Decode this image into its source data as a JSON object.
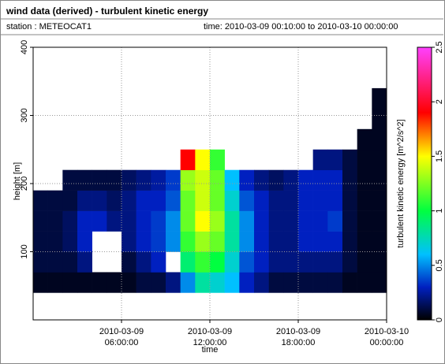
{
  "chart_data": {
    "type": "heatmap",
    "title": "wind data (derived) - turbulent kinetic energy",
    "station": "station : METEOCAT1",
    "time_range": "time: 2010-03-09 00:10:00 to 2010-03-10 00:00:00",
    "xlabel": "time",
    "ylabel": "height [m]",
    "colorbar_label": "turbulent kinetic energy [m^2/s^2]",
    "xlim": [
      0,
      24
    ],
    "xticks": [
      {
        "value": 6,
        "label": "2010-03-09 06:00:00"
      },
      {
        "value": 12,
        "label": "2010-03-09 12:00:00"
      },
      {
        "value": 18,
        "label": "2010-03-09 18:00:00"
      },
      {
        "value": 24,
        "label": "2010-03-10 00:00:00"
      }
    ],
    "ylim": [
      0,
      400
    ],
    "yticks": [
      100,
      200,
      300,
      400
    ],
    "zlim": [
      0,
      2.5
    ],
    "zticks": [
      0,
      0.5,
      1,
      1.5,
      2,
      2.5
    ],
    "colorscale": [
      [
        0,
        "#000000"
      ],
      [
        0.3,
        "#0020c0"
      ],
      [
        0.6,
        "#00c0ff"
      ],
      [
        1,
        "#00ff40"
      ],
      [
        1.5,
        "#ffff00"
      ],
      [
        1.9,
        "#ff0000"
      ],
      [
        2.5,
        "#ff40ff"
      ]
    ],
    "grid": true,
    "xbins": [
      0,
      1,
      2,
      3,
      4,
      5,
      6,
      7,
      8,
      9,
      10,
      11,
      12,
      13,
      14,
      15,
      16,
      17,
      18,
      19,
      20,
      21,
      22,
      23,
      24
    ],
    "ybins": [
      40,
      70,
      100,
      130,
      160,
      190,
      220,
      250,
      280,
      310,
      340
    ],
    "values": [
      [
        0.05,
        0.1,
        0.1,
        0.1,
        0.1,
        null,
        null,
        null,
        null,
        null
      ],
      [
        0.05,
        0.1,
        0.1,
        0.1,
        0.1,
        null,
        null,
        null,
        null,
        null
      ],
      [
        0.05,
        0.1,
        0.15,
        0.15,
        0.1,
        0.1,
        null,
        null,
        null,
        null
      ],
      [
        0.05,
        0.2,
        0.3,
        0.3,
        0.2,
        0.1,
        null,
        null,
        null,
        null
      ],
      [
        0.05,
        null,
        null,
        0.3,
        0.2,
        0.1,
        null,
        null,
        null,
        null
      ],
      [
        0.05,
        null,
        null,
        0.2,
        0.15,
        0.1,
        null,
        null,
        null,
        null
      ],
      [
        0.05,
        0.1,
        0.2,
        0.2,
        0.2,
        0.15,
        null,
        null,
        null,
        null
      ],
      [
        0.1,
        0.2,
        0.3,
        0.3,
        0.3,
        0.2,
        null,
        null,
        null,
        null
      ],
      [
        0.1,
        0.3,
        0.35,
        0.35,
        0.3,
        0.25,
        null,
        null,
        null,
        null
      ],
      [
        0.2,
        null,
        0.5,
        0.5,
        0.4,
        0.35,
        null,
        null,
        null,
        null
      ],
      [
        0.5,
        0.9,
        1.1,
        1.2,
        1.2,
        1.3,
        1.9,
        null,
        null,
        null
      ],
      [
        0.8,
        1.1,
        1.3,
        1.5,
        1.4,
        1.4,
        1.5,
        null,
        null,
        null
      ],
      [
        0.7,
        1.0,
        1.2,
        1.3,
        1.2,
        1.2,
        1.1,
        null,
        null,
        null
      ],
      [
        0.6,
        0.7,
        0.8,
        0.8,
        0.7,
        0.6,
        null,
        null,
        null,
        null
      ],
      [
        0.3,
        0.4,
        0.5,
        0.5,
        0.4,
        0.3,
        null,
        null,
        null,
        null
      ],
      [
        0.2,
        0.3,
        0.3,
        0.3,
        0.3,
        0.2,
        null,
        null,
        null,
        null
      ],
      [
        0.1,
        0.2,
        0.2,
        0.2,
        0.2,
        0.15,
        null,
        null,
        null,
        null
      ],
      [
        0.1,
        0.2,
        0.2,
        0.2,
        0.2,
        0.2,
        null,
        null,
        null,
        null
      ],
      [
        0.1,
        0.2,
        0.3,
        0.3,
        0.3,
        0.3,
        null,
        null,
        null,
        null
      ],
      [
        0.1,
        0.2,
        0.3,
        0.3,
        0.3,
        0.3,
        0.2,
        null,
        null,
        null
      ],
      [
        0.1,
        0.2,
        0.3,
        0.35,
        0.3,
        0.3,
        0.2,
        null,
        null,
        null
      ],
      [
        0.05,
        0.1,
        0.1,
        0.1,
        0.1,
        0.1,
        0.1,
        null,
        null,
        null
      ],
      [
        0.05,
        0.05,
        0.05,
        0.05,
        0.05,
        0.05,
        0.05,
        0.05,
        null,
        null
      ],
      [
        0.05,
        0.05,
        0.05,
        0.05,
        0.05,
        0.05,
        0.05,
        0.05,
        0.05,
        0.05
      ]
    ]
  }
}
